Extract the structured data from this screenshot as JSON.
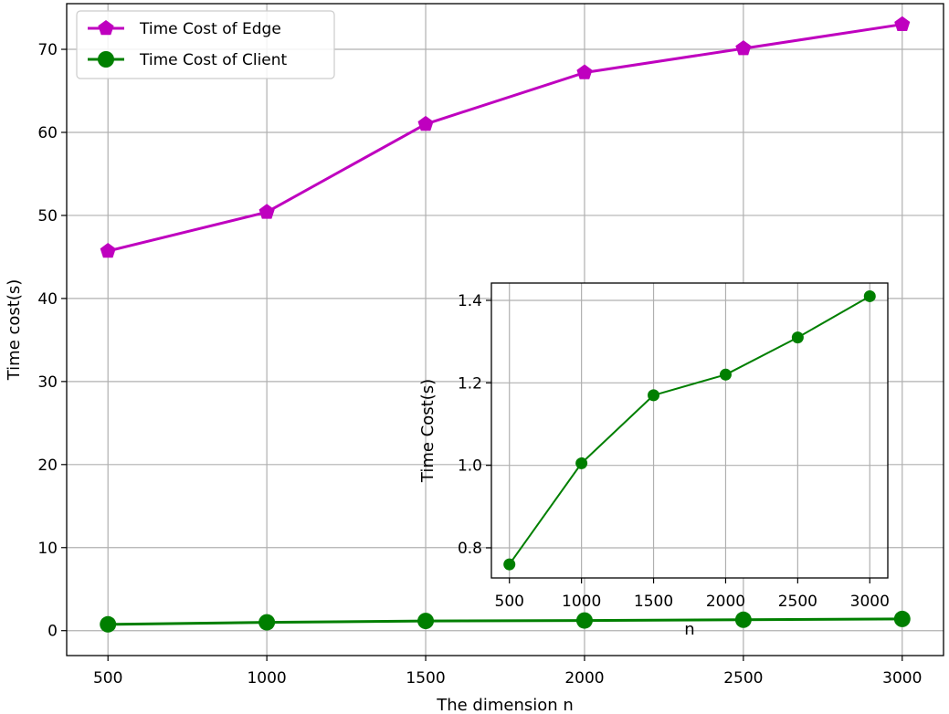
{
  "chart_data": [
    {
      "type": "line",
      "title": "",
      "xlabel": "The dimension n",
      "ylabel": "Time cost(s)",
      "x": [
        500,
        1000,
        1500,
        2000,
        2500,
        3000
      ],
      "xticks": [
        "500",
        "1000",
        "1500",
        "2000",
        "2500",
        "3000"
      ],
      "yticks": [
        "0",
        "10",
        "20",
        "30",
        "40",
        "50",
        "60",
        "70"
      ],
      "xlim": [
        370,
        3130
      ],
      "ylim": [
        -3,
        75.5
      ],
      "grid": true,
      "legend_position": "top-left",
      "series": [
        {
          "name": "Time Cost of Edge",
          "values": [
            45.7,
            50.4,
            61.0,
            67.2,
            70.1,
            73.0
          ],
          "color": "#bf00bf",
          "marker": "pentagon"
        },
        {
          "name": "Time Cost of Client",
          "values": [
            0.76,
            1.0,
            1.17,
            1.22,
            1.31,
            1.41
          ],
          "color": "#007f00",
          "marker": "circle"
        }
      ]
    },
    {
      "type": "line",
      "title": "",
      "xlabel": "n",
      "ylabel": "Time Cost(s)",
      "x": [
        500,
        1000,
        1500,
        2000,
        2500,
        3000
      ],
      "xticks": [
        "500",
        "1000",
        "1500",
        "2000",
        "2500",
        "3000"
      ],
      "yticks": [
        "0.8",
        "1.0",
        "1.2",
        "1.4"
      ],
      "xlim": [
        375,
        3125
      ],
      "ylim": [
        0.727,
        1.442
      ],
      "grid": true,
      "series": [
        {
          "name": "Time Cost of Client",
          "values": [
            0.76,
            1.005,
            1.17,
            1.22,
            1.31,
            1.41
          ],
          "color": "#007f00",
          "marker": "circle"
        }
      ]
    }
  ]
}
